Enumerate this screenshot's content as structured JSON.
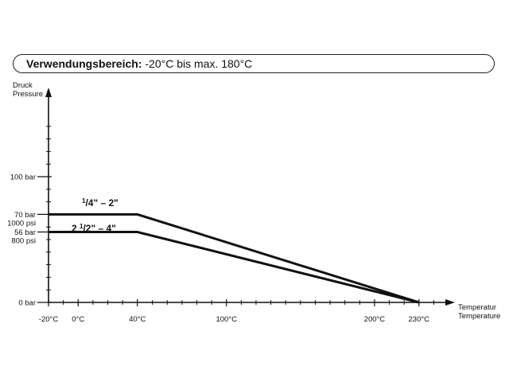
{
  "header": {
    "title_bold": "Verwendungsbereich:",
    "title_rest": " -20°C bis max. 180°C"
  },
  "chart_data": {
    "type": "line",
    "title": "Verwendungsbereich: -20°C bis max. 180°C",
    "ylabel": [
      "Druck",
      "Pressure"
    ],
    "xlabel": [
      "Temperatur",
      "Temperature"
    ],
    "xlim": [
      -20,
      240
    ],
    "ylim": [
      0,
      160
    ],
    "x_ticks": [
      {
        "value": -20,
        "label": "-20°C"
      },
      {
        "value": 0,
        "label": "0°C"
      },
      {
        "value": 40,
        "label": "40°C"
      },
      {
        "value": 100,
        "label": "100°C"
      },
      {
        "value": 200,
        "label": "200°C"
      },
      {
        "value": 230,
        "label": "230°C"
      }
    ],
    "x_minor_ticks": [
      -10,
      10,
      20,
      30,
      50,
      60,
      70,
      80,
      90,
      110,
      120,
      130,
      140,
      150,
      160,
      170,
      180,
      190,
      210,
      220,
      240
    ],
    "y_ticks": [
      {
        "value": 0,
        "label": [
          "0 bar"
        ]
      },
      {
        "value": 56,
        "label": [
          "56 bar",
          "800 psi"
        ]
      },
      {
        "value": 70,
        "label": [
          "70 bar",
          "1000 psi"
        ]
      },
      {
        "value": 100,
        "label": [
          "100 bar"
        ]
      }
    ],
    "y_minor_ticks": [
      10,
      20,
      30,
      40,
      50,
      60,
      80,
      90,
      110,
      120,
      130,
      140
    ],
    "series": [
      {
        "name": "1/4\" – 2\"",
        "label_parts": [
          "1",
          "/4\" – 2\""
        ],
        "x": [
          -20,
          40,
          230
        ],
        "y": [
          70,
          70,
          0
        ]
      },
      {
        "name": "2 1/2\" – 4\"",
        "label_parts": [
          "2 ",
          "1",
          "/2\" – 4\""
        ],
        "x": [
          -20,
          40,
          230
        ],
        "y": [
          56,
          56,
          0
        ]
      }
    ],
    "grid": false,
    "legend": "inline"
  }
}
